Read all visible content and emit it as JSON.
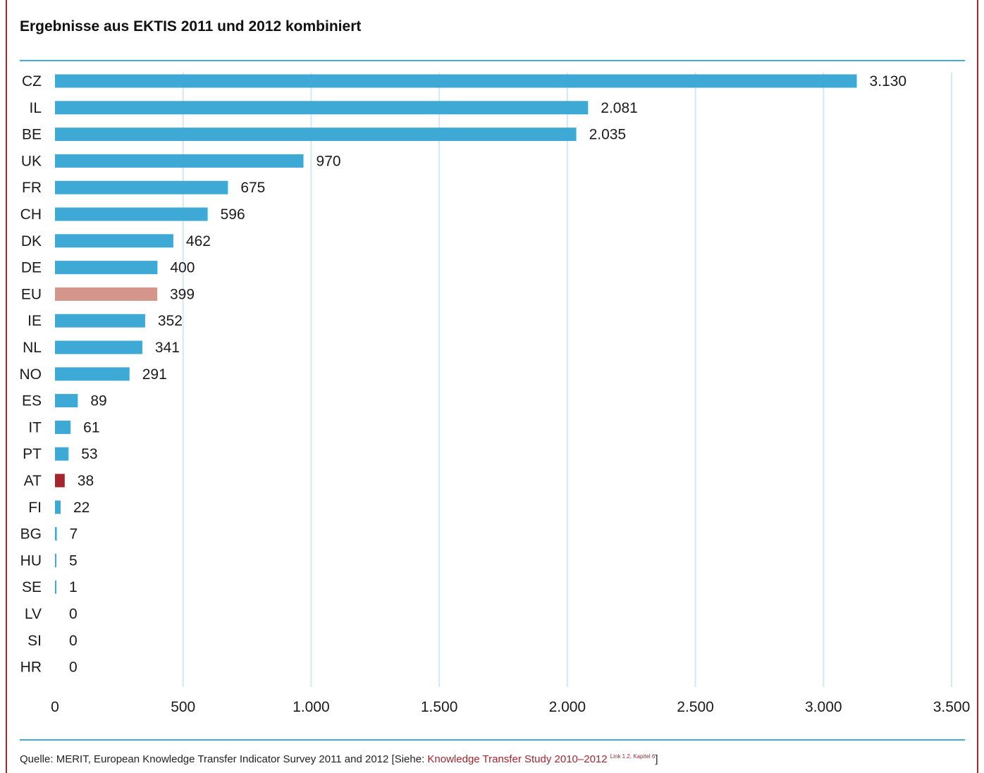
{
  "chart_data": {
    "type": "bar",
    "orientation": "horizontal",
    "title": "Ergebnisse aus EKTIS 2011 und 2012 kombiniert",
    "categories": [
      "CZ",
      "IL",
      "BE",
      "UK",
      "FR",
      "CH",
      "DK",
      "DE",
      "EU",
      "IE",
      "NL",
      "NO",
      "ES",
      "IT",
      "PT",
      "AT",
      "FI",
      "BG",
      "HU",
      "SE",
      "LV",
      "SI",
      "HR"
    ],
    "values": [
      3130,
      2081,
      2035,
      970,
      675,
      596,
      462,
      400,
      399,
      352,
      341,
      291,
      89,
      61,
      53,
      38,
      22,
      7,
      5,
      1,
      0,
      0,
      0
    ],
    "value_labels": [
      "3.130",
      "2.081",
      "2.035",
      "970",
      "675",
      "596",
      "462",
      "400",
      "399",
      "352",
      "341",
      "291",
      "89",
      "61",
      "53",
      "38",
      "22",
      "7",
      "5",
      "1",
      "0",
      "0",
      "0"
    ],
    "xlim": [
      0,
      3500
    ],
    "x_ticks": [
      0,
      500,
      1000,
      1500,
      2000,
      2500,
      3000,
      3500
    ],
    "x_tick_labels": [
      "0",
      "500",
      "1.000",
      "1.500",
      "2.000",
      "2.500",
      "3.000",
      "3.500"
    ],
    "grid": "vertical",
    "colors": {
      "default": "#3fa9d6",
      "EU": "#d4958a",
      "AT": "#a3262e",
      "grid": "#d3e8f4",
      "rule": "#44acd9"
    }
  },
  "footer": {
    "source_prefix": "Quelle: MERIT, European Knowledge Transfer Indicator Survey 2011 and 2012 [Siehe: ",
    "source_link": "Knowledge Transfer Study 2010–2012",
    "source_sup": "Link 1.2, Kapitel 6",
    "source_suffix": "]"
  }
}
